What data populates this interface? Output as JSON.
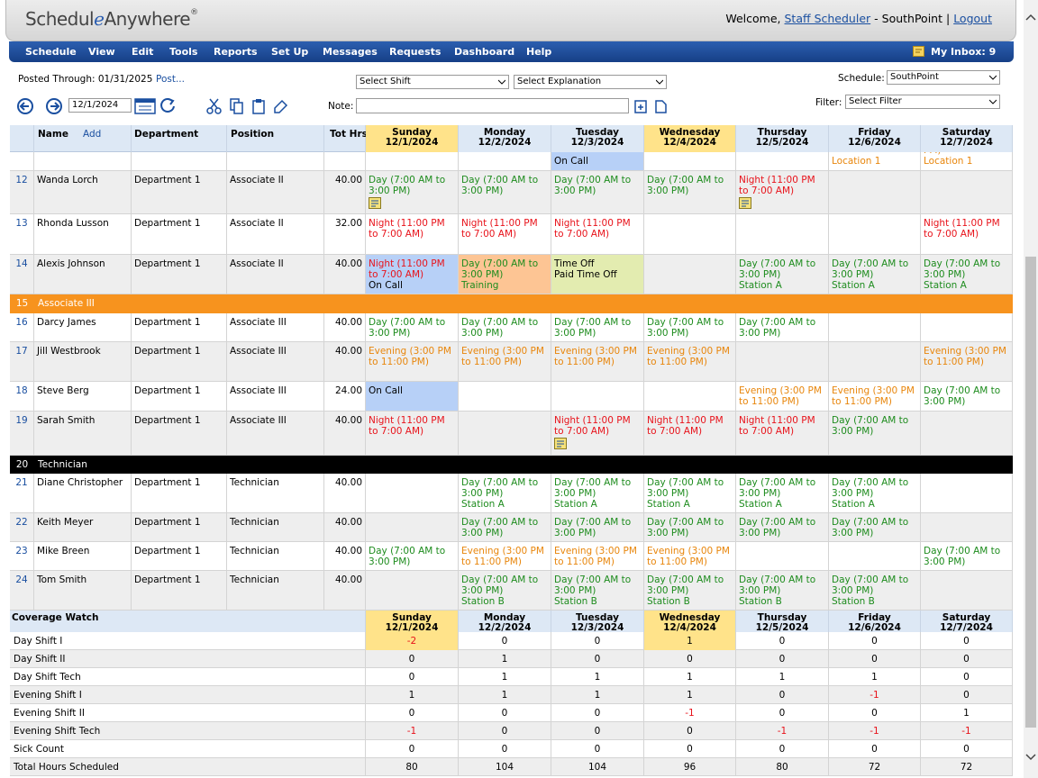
{
  "header": {
    "logo": "Schedul",
    "logo_e": "e",
    "logo_rest": "Anywhere",
    "logo_reg": "®",
    "welcome": "Welcome,",
    "user": "Staff Scheduler",
    "site": "- SouthPoint |",
    "logout": "Logout"
  },
  "menu": [
    "Schedule",
    "View",
    "Edit",
    "Tools",
    "Reports",
    "Set Up",
    "Messages",
    "Requests",
    "Dashboard",
    "Help"
  ],
  "inbox": "My Inbox: 9",
  "toolbar": {
    "posted": "Posted Through: 01/31/2025",
    "post": "Post...",
    "shift": "Select Shift",
    "explanation": "Select Explanation",
    "schedule_label": "Schedule:",
    "schedule": "SouthPoint",
    "date": "12/1/2024",
    "note_label": "Note:",
    "filter_label": "Filter:",
    "filter": "Select Filter"
  },
  "schedule": {
    "columns": {
      "name": "Name",
      "add": "Add",
      "department": "Department",
      "position": "Position",
      "hours": "Tot Hrs"
    },
    "days": [
      {
        "day": "Sunday",
        "date": "12/1/2024",
        "highlight": true
      },
      {
        "day": "Monday",
        "date": "12/2/2024"
      },
      {
        "day": "Tuesday",
        "date": "12/3/2024"
      },
      {
        "day": "Wednesday",
        "date": "12/4/2024",
        "highlight": true
      },
      {
        "day": "Thursday",
        "date": "12/5/2024"
      },
      {
        "day": "Friday",
        "date": "12/6/2024"
      },
      {
        "day": "Saturday",
        "date": "12/7/2024"
      }
    ],
    "rows": [
      {
        "partial": true,
        "cells": [
          null,
          null,
          {
            "text": [
              "On Call"
            ],
            "color": "#000",
            "bg": "#b7d0f7"
          },
          null,
          null,
          {
            "text": [
              "Location 1"
            ],
            "color": "#e8860c"
          },
          {
            "text": [
              "PM)",
              "Location 1"
            ],
            "color": "#e8860c"
          }
        ]
      },
      {
        "num": "12",
        "name": "Wanda Lorch",
        "department": "Department 1",
        "position": "Associate II",
        "hours": "40.00",
        "cells": [
          {
            "text": [
              "Day (7:00 AM to 3:00 PM)"
            ],
            "color": "#1e8c1e",
            "note": true
          },
          {
            "text": [
              "Day (7:00 AM to 3:00 PM)"
            ],
            "color": "#1e8c1e"
          },
          {
            "text": [
              "Day (7:00 AM to 3:00 PM)"
            ],
            "color": "#1e8c1e"
          },
          {
            "text": [
              "Day (7:00 AM to 3:00 PM)"
            ],
            "color": "#1e8c1e"
          },
          {
            "text": [
              "Night (11:00 PM to 7:00 AM)"
            ],
            "color": "#e8131b",
            "note": true
          },
          null,
          null
        ]
      },
      {
        "num": "13",
        "name": "Rhonda Lusson",
        "department": "Department 1",
        "position": "Associate II",
        "hours": "32.00",
        "cells": [
          {
            "text": [
              "Night (11:00 PM to 7:00 AM)"
            ],
            "color": "#e8131b"
          },
          {
            "text": [
              "Night (11:00 PM to 7:00 AM)"
            ],
            "color": "#e8131b"
          },
          {
            "text": [
              "Night (11:00 PM to 7:00 AM)"
            ],
            "color": "#e8131b"
          },
          null,
          null,
          null,
          {
            "text": [
              "Night (11:00 PM to 7:00 AM)"
            ],
            "color": "#e8131b"
          }
        ]
      },
      {
        "num": "14",
        "name": "Alexis Johnson",
        "department": "Department 1",
        "position": "Associate II",
        "hours": "40.00",
        "cells": [
          {
            "text": [
              "Night (11:00 PM to 7:00 AM)",
              "On Call"
            ],
            "color": [
              "#e8131b",
              "#000"
            ],
            "bg": "#b7d0f7"
          },
          {
            "text": [
              "Day (7:00 AM to 3:00 PM)",
              "Training"
            ],
            "color": "#1e8c1e",
            "bg": "#fdc594"
          },
          {
            "text": [
              "Time Off",
              "Paid Time Off"
            ],
            "color": "#000",
            "bg": "#e3ecb0"
          },
          null,
          {
            "text": [
              "Day (7:00 AM to 3:00 PM)",
              "Station A"
            ],
            "color": "#1e8c1e"
          },
          {
            "text": [
              "Day (7:00 AM to 3:00 PM)",
              "Station A"
            ],
            "color": "#1e8c1e"
          },
          {
            "text": [
              "Day (7:00 AM to 3:00 PM)",
              "Station A"
            ],
            "color": "#1e8c1e"
          }
        ]
      },
      {
        "num": "15",
        "group": "Associate III",
        "color": "#f7931e"
      },
      {
        "num": "16",
        "name": "Darcy James",
        "department": "Department 1",
        "position": "Associate III",
        "hours": "40.00",
        "cells": [
          {
            "text": [
              "Day (7:00 AM to 3:00 PM)"
            ],
            "color": "#1e8c1e"
          },
          {
            "text": [
              "Day (7:00 AM to 3:00 PM)"
            ],
            "color": "#1e8c1e"
          },
          {
            "text": [
              "Day (7:00 AM to 3:00 PM)"
            ],
            "color": "#1e8c1e"
          },
          {
            "text": [
              "Day (7:00 AM to 3:00 PM)"
            ],
            "color": "#1e8c1e"
          },
          {
            "text": [
              "Day (7:00 AM to 3:00 PM)"
            ],
            "color": "#1e8c1e"
          },
          null,
          null
        ]
      },
      {
        "num": "17",
        "name": "Jill Westbrook",
        "department": "Department 1",
        "position": "Associate III",
        "hours": "40.00",
        "cells": [
          {
            "text": [
              "Evening (3:00 PM to 11:00 PM)"
            ],
            "color": "#e8860c"
          },
          {
            "text": [
              "Evening (3:00 PM to 11:00 PM)"
            ],
            "color": "#e8860c"
          },
          {
            "text": [
              "Evening (3:00 PM to 11:00 PM)"
            ],
            "color": "#e8860c"
          },
          {
            "text": [
              "Evening (3:00 PM to 11:00 PM)"
            ],
            "color": "#e8860c"
          },
          null,
          null,
          {
            "text": [
              "Evening (3:00 PM to 11:00 PM)"
            ],
            "color": "#e8860c"
          }
        ]
      },
      {
        "num": "18",
        "name": "Steve Berg",
        "department": "Department 1",
        "position": "Associate III",
        "hours": "24.00",
        "cells": [
          {
            "text": [
              "On Call"
            ],
            "color": "#000",
            "bg": "#b7d0f7"
          },
          null,
          null,
          null,
          {
            "text": [
              "Evening (3:00 PM to 11:00 PM)"
            ],
            "color": "#e8860c"
          },
          {
            "text": [
              "Evening (3:00 PM to 11:00 PM)"
            ],
            "color": "#e8860c"
          },
          {
            "text": [
              "Day (7:00 AM to 3:00 PM)"
            ],
            "color": "#1e8c1e"
          }
        ]
      },
      {
        "num": "19",
        "name": "Sarah Smith",
        "department": "Department 1",
        "position": "Associate III",
        "hours": "40.00",
        "cells": [
          {
            "text": [
              "Night (11:00 PM to 7:00 AM)"
            ],
            "color": "#e8131b"
          },
          null,
          {
            "text": [
              "Night (11:00 PM to 7:00 AM)"
            ],
            "color": "#e8131b",
            "note": true
          },
          {
            "text": [
              "Night (11:00 PM to 7:00 AM)"
            ],
            "color": "#e8131b"
          },
          {
            "text": [
              "Night (11:00 PM to 7:00 AM)"
            ],
            "color": "#e8131b"
          },
          {
            "text": [
              "Day (7:00 AM to 3:00 PM)"
            ],
            "color": "#1e8c1e"
          },
          null
        ]
      },
      {
        "num": "20",
        "group": "Technician",
        "color": "#000000"
      },
      {
        "num": "21",
        "name": "Diane Christopher",
        "department": "Department 1",
        "position": "Technician",
        "hours": "40.00",
        "cells": [
          null,
          {
            "text": [
              "Day (7:00 AM to 3:00 PM)",
              "Station A"
            ],
            "color": "#1e8c1e"
          },
          {
            "text": [
              "Day (7:00 AM to 3:00 PM)",
              "Station A"
            ],
            "color": "#1e8c1e"
          },
          {
            "text": [
              "Day (7:00 AM to 3:00 PM)",
              "Station A"
            ],
            "color": "#1e8c1e"
          },
          {
            "text": [
              "Day (7:00 AM to 3:00 PM)",
              "Station A"
            ],
            "color": "#1e8c1e"
          },
          {
            "text": [
              "Day (7:00 AM to 3:00 PM)",
              "Station A"
            ],
            "color": "#1e8c1e"
          },
          null
        ]
      },
      {
        "num": "22",
        "name": "Keith Meyer",
        "department": "Department 1",
        "position": "Technician",
        "hours": "40.00",
        "cells": [
          null,
          {
            "text": [
              "Day (7:00 AM to 3:00 PM)"
            ],
            "color": "#1e8c1e"
          },
          {
            "text": [
              "Day (7:00 AM to 3:00 PM)"
            ],
            "color": "#1e8c1e"
          },
          {
            "text": [
              "Day (7:00 AM to 3:00 PM)"
            ],
            "color": "#1e8c1e"
          },
          {
            "text": [
              "Day (7:00 AM to 3:00 PM)"
            ],
            "color": "#1e8c1e"
          },
          {
            "text": [
              "Day (7:00 AM to 3:00 PM)"
            ],
            "color": "#1e8c1e"
          },
          null
        ]
      },
      {
        "num": "23",
        "name": "Mike Breen",
        "department": "Department 1",
        "position": "Technician",
        "hours": "40.00",
        "cells": [
          {
            "text": [
              "Day (7:00 AM to 3:00 PM)"
            ],
            "color": "#1e8c1e"
          },
          {
            "text": [
              "Evening (3:00 PM to 11:00 PM)"
            ],
            "color": "#e8860c"
          },
          {
            "text": [
              "Evening (3:00 PM to 11:00 PM)"
            ],
            "color": "#e8860c"
          },
          {
            "text": [
              "Evening (3:00 PM to 11:00 PM)"
            ],
            "color": "#e8860c"
          },
          null,
          null,
          {
            "text": [
              "Day (7:00 AM to 3:00 PM)"
            ],
            "color": "#1e8c1e"
          }
        ]
      },
      {
        "num": "24",
        "name": "Tom Smith",
        "department": "Department 1",
        "position": "Technician",
        "hours": "40.00",
        "cells": [
          null,
          {
            "text": [
              "Day (7:00 AM to 3:00 PM)",
              "Station B"
            ],
            "color": "#1e8c1e"
          },
          {
            "text": [
              "Day (7:00 AM to 3:00 PM)",
              "Station B"
            ],
            "color": "#1e8c1e"
          },
          {
            "text": [
              "Day (7:00 AM to 3:00 PM)",
              "Station B"
            ],
            "color": "#1e8c1e"
          },
          {
            "text": [
              "Day (7:00 AM to 3:00 PM)",
              "Station B"
            ],
            "color": "#1e8c1e"
          },
          {
            "text": [
              "Day (7:00 AM to 3:00 PM)",
              "Station B"
            ],
            "color": "#1e8c1e"
          },
          null
        ]
      }
    ]
  },
  "coverage": {
    "title": "Coverage Watch",
    "rows": [
      {
        "label": "Day Shift I",
        "values": [
          -2,
          0,
          0,
          1,
          0,
          0,
          0
        ],
        "highlight": [
          true,
          false,
          false,
          true,
          false,
          false,
          false
        ]
      },
      {
        "label": "Day Shift II",
        "values": [
          0,
          1,
          0,
          0,
          0,
          0,
          0
        ]
      },
      {
        "label": "Day Shift Tech",
        "values": [
          0,
          1,
          1,
          1,
          1,
          1,
          0
        ]
      },
      {
        "label": "Evening Shift I",
        "values": [
          1,
          1,
          1,
          1,
          0,
          -1,
          0
        ]
      },
      {
        "label": "Evening Shift II",
        "values": [
          0,
          0,
          0,
          -1,
          0,
          0,
          1
        ]
      },
      {
        "label": "Evening Shift Tech",
        "values": [
          -1,
          0,
          0,
          0,
          -1,
          -1,
          -1
        ]
      },
      {
        "label": "Sick Count",
        "values": [
          0,
          0,
          0,
          0,
          0,
          0,
          0
        ]
      },
      {
        "label": "Total Hours Scheduled",
        "values": [
          80,
          104,
          104,
          96,
          80,
          72,
          72
        ]
      }
    ]
  }
}
